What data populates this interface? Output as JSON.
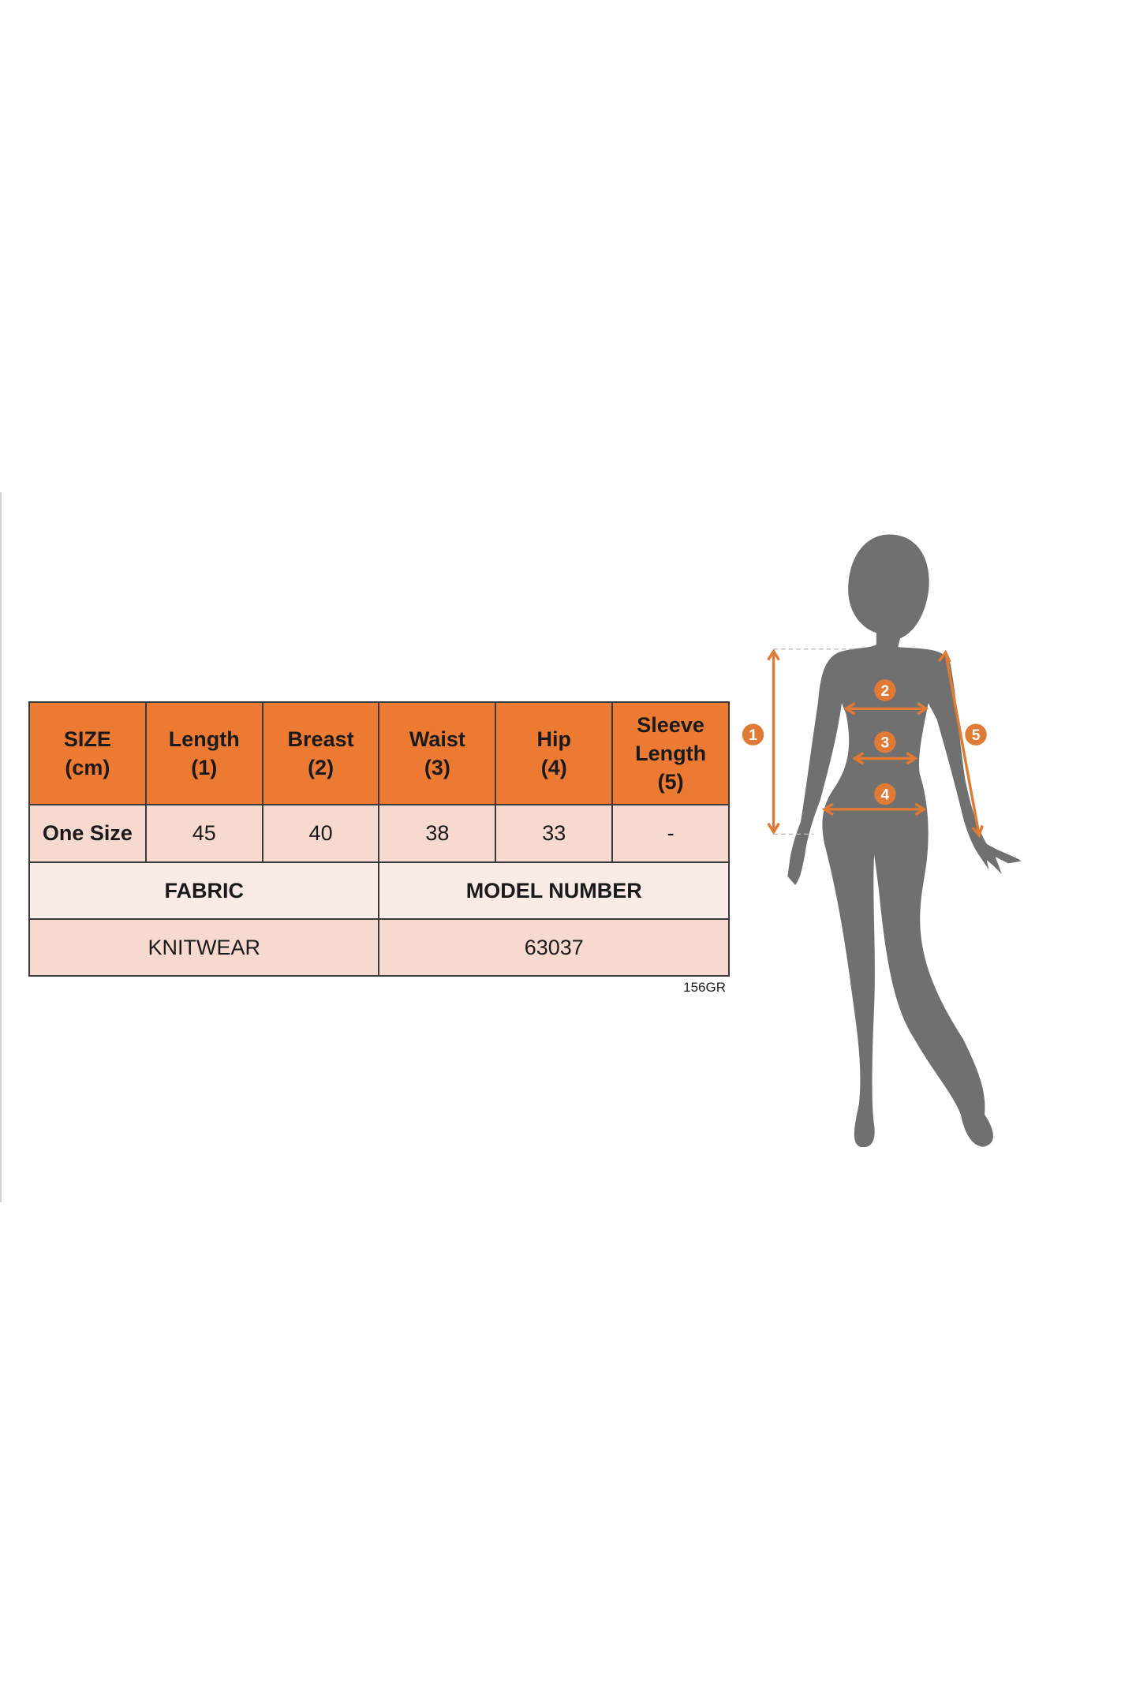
{
  "table": {
    "headers": [
      "SIZE\n(cm)",
      "Length\n(1)",
      "Breast\n(2)",
      "Waist\n(3)",
      "Hip\n(4)",
      "Sleeve\nLength\n(5)"
    ],
    "row": [
      "One Size",
      "45",
      "40",
      "38",
      "33",
      "-"
    ],
    "fabric_label": "FABRIC",
    "model_label": "MODEL NUMBER",
    "fabric_value": "KNITWEAR",
    "model_value": "63037"
  },
  "code": "156GR",
  "figure": {
    "markers": [
      "1",
      "2",
      "3",
      "4",
      "5"
    ],
    "accent": "#e07a35",
    "silhouette": "#707070"
  }
}
